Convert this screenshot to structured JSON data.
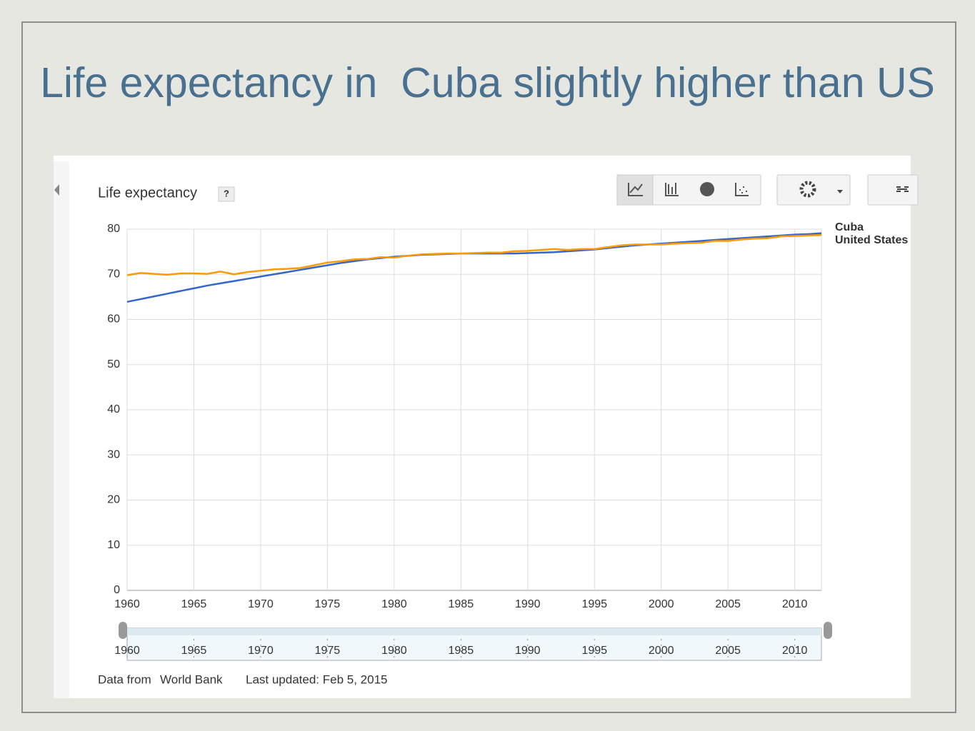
{
  "slide_title": "Life expectancy in  Cuba slightly higher than US",
  "help": "?",
  "footer": {
    "source_prefix": "Data from",
    "source_link": "World Bank",
    "updated": "Last updated: Feb 5, 2015"
  },
  "chart_data": {
    "type": "line",
    "title": "Life expectancy",
    "x": [
      1960,
      1961,
      1962,
      1963,
      1964,
      1965,
      1966,
      1967,
      1968,
      1969,
      1970,
      1971,
      1972,
      1973,
      1974,
      1975,
      1976,
      1977,
      1978,
      1979,
      1980,
      1981,
      1982,
      1983,
      1984,
      1985,
      1986,
      1987,
      1988,
      1989,
      1990,
      1991,
      1992,
      1993,
      1994,
      1995,
      1996,
      1997,
      1998,
      1999,
      2000,
      2001,
      2002,
      2003,
      2004,
      2005,
      2006,
      2007,
      2008,
      2009,
      2010,
      2011,
      2012
    ],
    "series": [
      {
        "name": "Cuba",
        "color": "#3366cc",
        "values": [
          63.9,
          64.5,
          65.1,
          65.7,
          66.3,
          66.9,
          67.5,
          68.0,
          68.5,
          69.0,
          69.5,
          70.0,
          70.5,
          71.0,
          71.5,
          72.0,
          72.5,
          72.9,
          73.3,
          73.6,
          73.9,
          74.1,
          74.3,
          74.4,
          74.5,
          74.6,
          74.6,
          74.6,
          74.6,
          74.6,
          74.7,
          74.8,
          74.9,
          75.1,
          75.3,
          75.5,
          75.8,
          76.1,
          76.4,
          76.6,
          76.8,
          77.0,
          77.2,
          77.4,
          77.6,
          77.8,
          78.0,
          78.2,
          78.4,
          78.6,
          78.8,
          78.9,
          79.1
        ]
      },
      {
        "name": "United States",
        "color": "#ff9900",
        "values": [
          69.8,
          70.3,
          70.1,
          69.9,
          70.2,
          70.2,
          70.1,
          70.6,
          70.0,
          70.5,
          70.8,
          71.1,
          71.2,
          71.4,
          72.0,
          72.6,
          72.9,
          73.3,
          73.4,
          73.8,
          73.7,
          74.1,
          74.4,
          74.5,
          74.6,
          74.6,
          74.7,
          74.8,
          74.8,
          75.1,
          75.2,
          75.4,
          75.6,
          75.4,
          75.6,
          75.6,
          76.0,
          76.4,
          76.6,
          76.6,
          76.6,
          76.8,
          76.9,
          77.0,
          77.4,
          77.4,
          77.7,
          77.9,
          78.0,
          78.4,
          78.5,
          78.6,
          78.7
        ]
      }
    ],
    "xlim": [
      1960,
      2012
    ],
    "xticks": [
      1960,
      1965,
      1970,
      1975,
      1980,
      1985,
      1990,
      1995,
      2000,
      2005,
      2010
    ],
    "ylim": [
      0,
      80
    ],
    "yticks": [
      0,
      10,
      20,
      30,
      40,
      50,
      60,
      70,
      80
    ],
    "grid": true,
    "legend": "right"
  }
}
